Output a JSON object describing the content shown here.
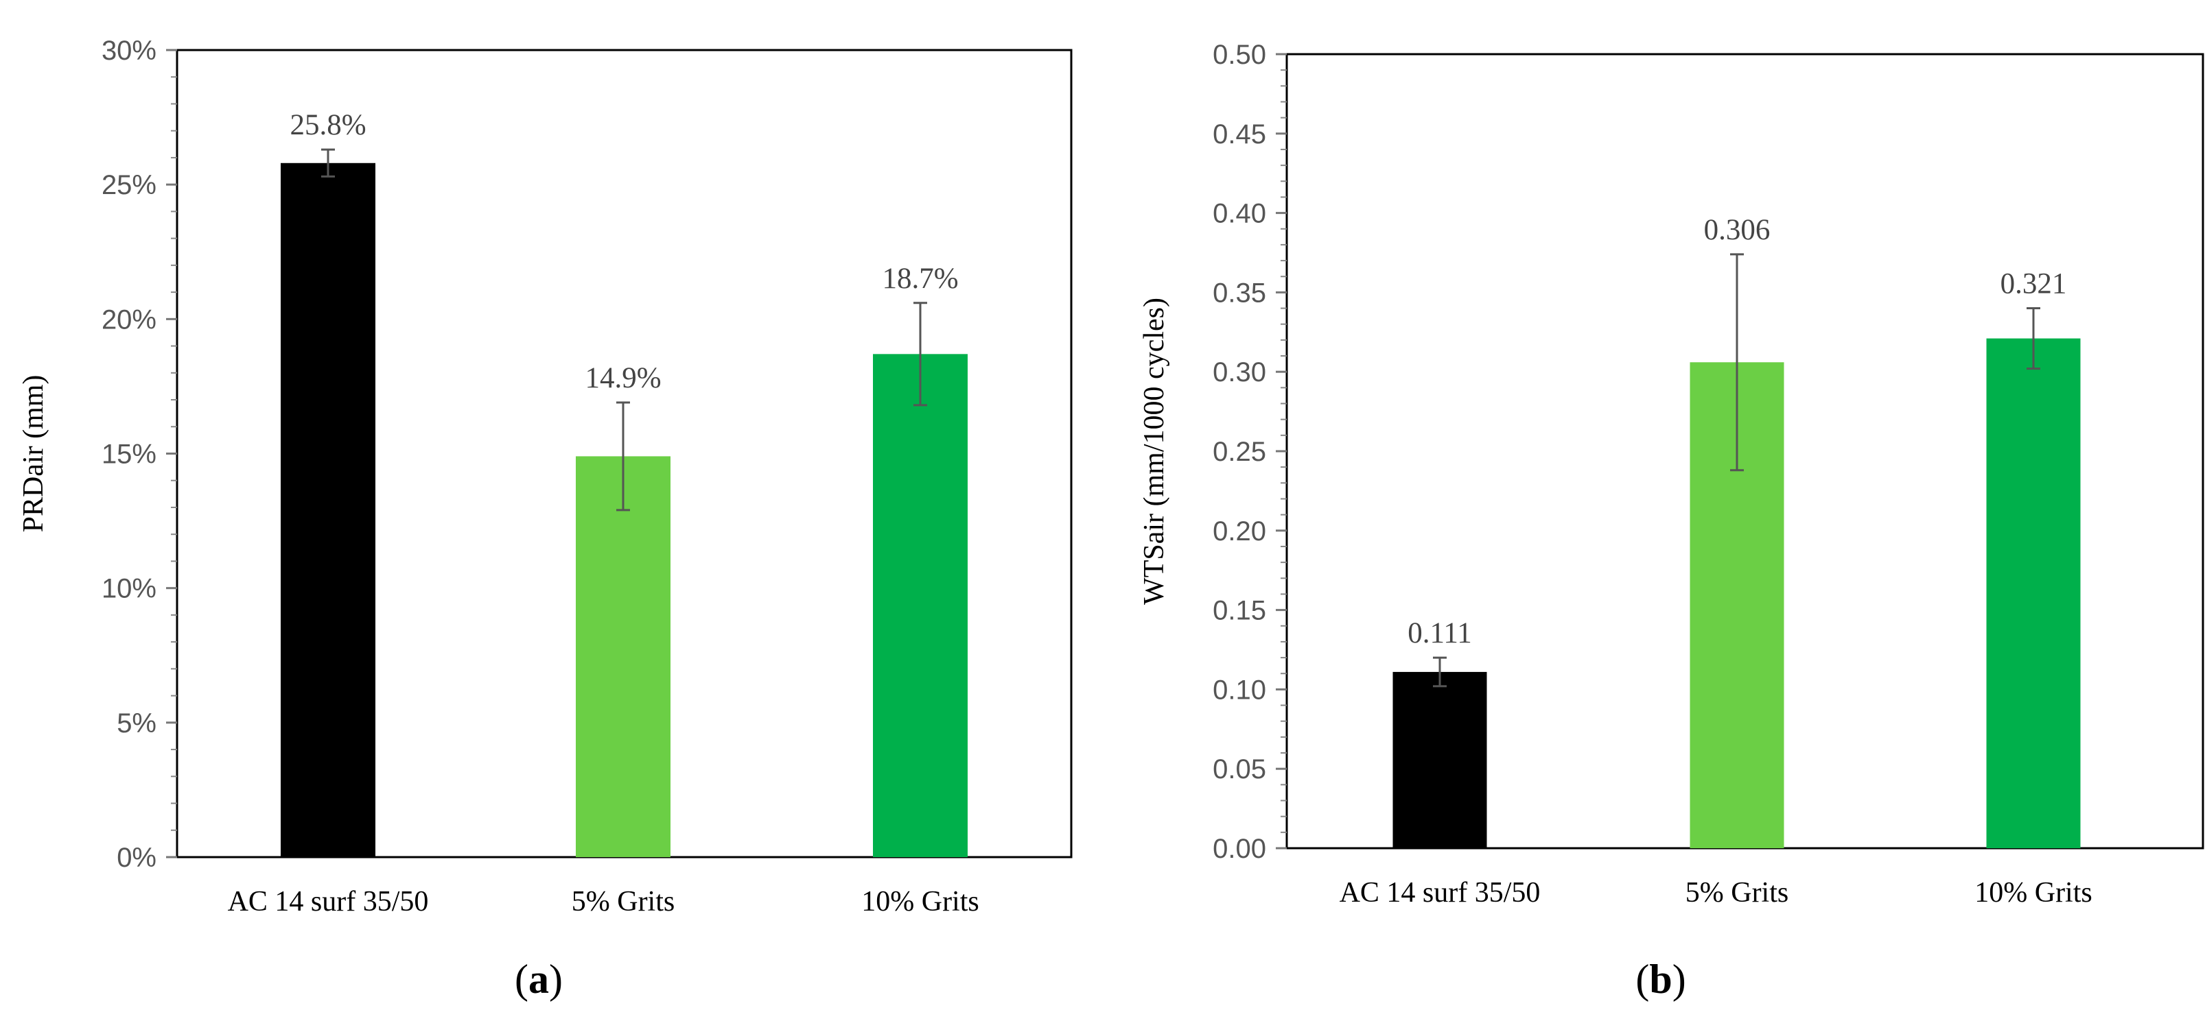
{
  "chart_data": [
    {
      "type": "bar",
      "panel_label": "a",
      "categories": [
        "AC 14 surf 35/50",
        "5% Grits",
        "10% Grits"
      ],
      "values": [
        25.8,
        14.9,
        18.7
      ],
      "error": [
        0.5,
        2.0,
        1.9
      ],
      "data_labels": [
        "25.8%",
        "14.9%",
        "18.7%"
      ],
      "colors": [
        "#000000",
        "#6bcf45",
        "#00b04b"
      ],
      "ylabel": "PRDair (mm)",
      "xlabel": "",
      "ylim": [
        0,
        30
      ],
      "yticks": [
        0,
        5,
        10,
        15,
        20,
        25,
        30
      ],
      "ytick_labels": [
        "0%",
        "5%",
        "10%",
        "15%",
        "20%",
        "25%",
        "30%"
      ],
      "grid": false
    },
    {
      "type": "bar",
      "panel_label": "b",
      "categories": [
        "AC 14 surf 35/50",
        "5% Grits",
        "10% Grits"
      ],
      "values": [
        0.111,
        0.306,
        0.321
      ],
      "error": [
        0.009,
        0.068,
        0.019
      ],
      "data_labels": [
        "0.111",
        "0.306",
        "0.321"
      ],
      "colors": [
        "#000000",
        "#6bcf45",
        "#00b04b"
      ],
      "ylabel": "WTSair (mm/1000 cycles)",
      "xlabel": "",
      "ylim": [
        0,
        0.5
      ],
      "yticks": [
        0,
        0.05,
        0.1,
        0.15,
        0.2,
        0.25,
        0.3,
        0.35,
        0.4,
        0.45,
        0.5
      ],
      "ytick_labels": [
        "0.00",
        "0.05",
        "0.10",
        "0.15",
        "0.20",
        "0.25",
        "0.30",
        "0.35",
        "0.40",
        "0.45",
        "0.50"
      ],
      "grid": false
    }
  ],
  "panels": {
    "a": {
      "open": "(",
      "letter": "a",
      "close": ")"
    },
    "b": {
      "open": "(",
      "letter": "b",
      "close": ")"
    }
  }
}
